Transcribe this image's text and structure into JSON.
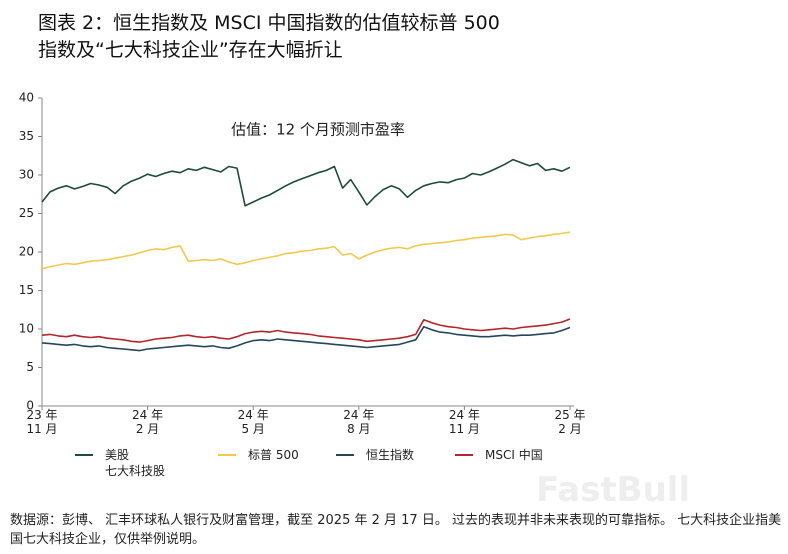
{
  "chart_data": {
    "type": "line",
    "title": "图表 2：恒生指数及 MSCI 中国指数的估值较标普 500\n指数及“七大科技企业”存在大幅折让",
    "annotation": "估值：12 个月预测市盈率",
    "categories": [
      "23 年\n11 月",
      null,
      null,
      null,
      null,
      null,
      null,
      null,
      null,
      null,
      null,
      null,
      null,
      "24 年\n2 月",
      null,
      null,
      null,
      null,
      null,
      null,
      null,
      null,
      null,
      null,
      null,
      null,
      "24 年\n5 月",
      null,
      null,
      null,
      null,
      null,
      null,
      null,
      null,
      null,
      null,
      null,
      null,
      "24 年\n8 月",
      null,
      null,
      null,
      null,
      null,
      null,
      null,
      null,
      null,
      null,
      null,
      null,
      "24 年\n11 月",
      null,
      null,
      null,
      null,
      null,
      null,
      null,
      null,
      null,
      null,
      null,
      null,
      "25 年\n2 月"
    ],
    "series": [
      {
        "name": "美股\n七大科技股",
        "color": "#1f4b39",
        "values": [
          26.5,
          27.8,
          28.3,
          28.6,
          28.2,
          28.5,
          28.9,
          28.7,
          28.4,
          27.6,
          28.6,
          29.2,
          29.6,
          30.1,
          29.8,
          30.2,
          30.5,
          30.3,
          30.8,
          30.6,
          31.0,
          30.7,
          30.4,
          31.1,
          30.9,
          26.0,
          26.5,
          27.0,
          27.4,
          28.0,
          28.6,
          29.1,
          29.5,
          29.9,
          30.3,
          30.6,
          31.1,
          28.3,
          29.4,
          27.8,
          26.1,
          27.2,
          28.1,
          28.6,
          28.2,
          27.1,
          28.0,
          28.6,
          28.9,
          29.1,
          29.0,
          29.4,
          29.6,
          30.2,
          30.0,
          30.4,
          30.9,
          31.4,
          32.0,
          31.6,
          31.2,
          31.5,
          30.6,
          30.8,
          30.5,
          31.0
        ]
      },
      {
        "name": "标普 500",
        "color": "#f2c94c",
        "values": [
          17.8,
          18.1,
          18.3,
          18.5,
          18.4,
          18.6,
          18.8,
          18.9,
          19.0,
          19.2,
          19.4,
          19.6,
          19.9,
          20.2,
          20.4,
          20.3,
          20.6,
          20.8,
          18.8,
          18.9,
          19.0,
          18.9,
          19.1,
          18.7,
          18.4,
          18.6,
          18.9,
          19.1,
          19.3,
          19.5,
          19.8,
          19.9,
          20.1,
          20.2,
          20.4,
          20.5,
          20.7,
          19.6,
          19.8,
          19.1,
          19.6,
          20.0,
          20.3,
          20.5,
          20.6,
          20.4,
          20.8,
          21.0,
          21.1,
          21.2,
          21.3,
          21.5,
          21.6,
          21.8,
          21.9,
          22.0,
          22.1,
          22.3,
          22.2,
          21.6,
          21.8,
          22.0,
          22.1,
          22.3,
          22.4,
          22.6
        ]
      },
      {
        "name": "恒生指数",
        "color": "#25475a",
        "values": [
          8.2,
          8.1,
          8.0,
          7.9,
          8.0,
          7.8,
          7.7,
          7.8,
          7.6,
          7.5,
          7.4,
          7.3,
          7.2,
          7.4,
          7.5,
          7.6,
          7.7,
          7.8,
          7.9,
          7.8,
          7.7,
          7.8,
          7.6,
          7.5,
          7.8,
          8.2,
          8.5,
          8.6,
          8.5,
          8.7,
          8.6,
          8.5,
          8.4,
          8.3,
          8.2,
          8.1,
          8.0,
          7.9,
          7.8,
          7.7,
          7.6,
          7.7,
          7.8,
          7.9,
          8.0,
          8.3,
          8.6,
          10.3,
          9.9,
          9.6,
          9.5,
          9.3,
          9.2,
          9.1,
          9.0,
          9.0,
          9.1,
          9.2,
          9.1,
          9.2,
          9.2,
          9.3,
          9.4,
          9.5,
          9.8,
          10.2
        ]
      },
      {
        "name": "MSCI 中国",
        "color": "#b3262b",
        "values": [
          9.2,
          9.3,
          9.1,
          9.0,
          9.2,
          9.0,
          8.9,
          9.0,
          8.8,
          8.7,
          8.6,
          8.4,
          8.3,
          8.5,
          8.7,
          8.8,
          8.9,
          9.1,
          9.2,
          9.0,
          8.9,
          9.0,
          8.8,
          8.7,
          9.0,
          9.4,
          9.6,
          9.7,
          9.6,
          9.8,
          9.6,
          9.5,
          9.4,
          9.3,
          9.1,
          9.0,
          8.9,
          8.8,
          8.7,
          8.6,
          8.4,
          8.5,
          8.6,
          8.7,
          8.8,
          9.0,
          9.3,
          11.2,
          10.8,
          10.5,
          10.3,
          10.2,
          10.0,
          9.9,
          9.8,
          9.9,
          10.0,
          10.1,
          10.0,
          10.2,
          10.3,
          10.4,
          10.5,
          10.7,
          10.9,
          11.3
        ]
      }
    ],
    "ylim": [
      0,
      40
    ],
    "yticks": [
      0,
      5,
      10,
      15,
      20,
      25,
      30,
      35,
      40
    ],
    "grid": false,
    "source": "数据源：彭博、 汇丰环球私人银行及财富管理，截至 2025 年 2 月 17 日。 过去的表现并非未来表现的可靠指标。 七大科技企业指美国七大科技企业，仅供举例说明。",
    "watermark": "FastBull"
  }
}
